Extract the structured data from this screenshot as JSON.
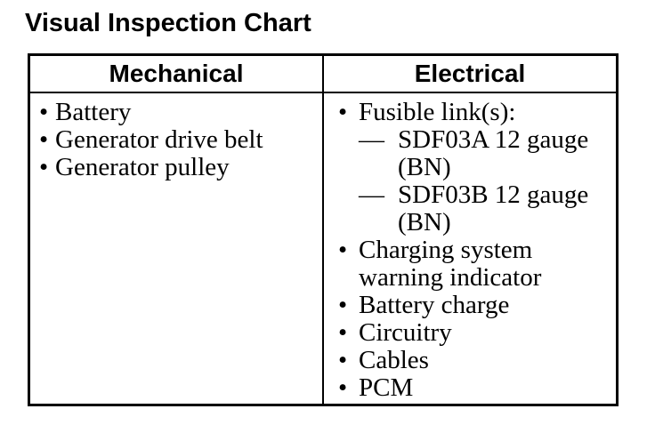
{
  "page": {
    "title": "Visual Inspection Chart"
  },
  "glyphs": {
    "bullet": "•",
    "dash": "—"
  },
  "colors": {
    "text": "#000000",
    "background": "#ffffff",
    "border": "#000000"
  },
  "table": {
    "columns": [
      {
        "header": "Mechanical",
        "items": [
          {
            "kind": "bullet",
            "lines": [
              "Battery"
            ]
          },
          {
            "kind": "bullet",
            "lines": [
              "Generator drive belt"
            ]
          },
          {
            "kind": "bullet",
            "lines": [
              "Generator pulley"
            ]
          }
        ]
      },
      {
        "header": "Electrical",
        "items": [
          {
            "kind": "bullet",
            "lines": [
              "Fusible link(s):"
            ]
          },
          {
            "kind": "dash",
            "lines": [
              "SDF03A 12 gauge",
              "(BN)"
            ]
          },
          {
            "kind": "dash",
            "lines": [
              "SDF03B 12 gauge",
              "(BN)"
            ]
          },
          {
            "kind": "bullet",
            "lines": [
              "Charging system",
              "warning indicator"
            ]
          },
          {
            "kind": "bullet",
            "lines": [
              "Battery charge"
            ]
          },
          {
            "kind": "bullet",
            "lines": [
              "Circuitry"
            ]
          },
          {
            "kind": "bullet",
            "lines": [
              "Cables"
            ]
          },
          {
            "kind": "bullet",
            "lines": [
              "PCM"
            ]
          }
        ]
      }
    ]
  }
}
